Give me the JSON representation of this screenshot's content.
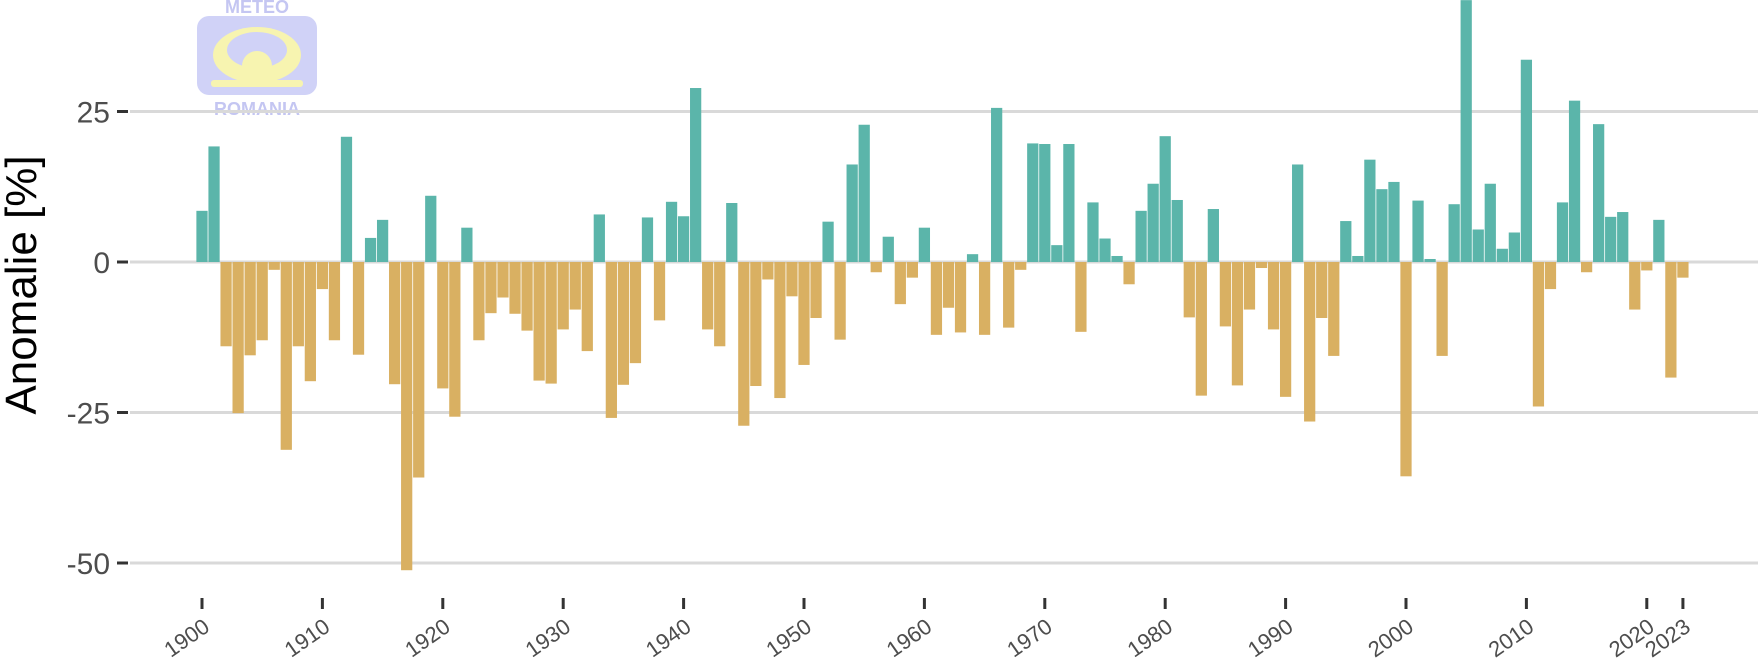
{
  "logo": {
    "top_text": "METEO",
    "bottom_text": "ROMANIA"
  },
  "colors": {
    "positive": "#5bb5aa",
    "negative": "#d9b062",
    "grid": "#d9d9d9",
    "logo": "#d0d2f7",
    "logo_symbol": "#f7f4b0"
  },
  "chart_data": {
    "type": "bar",
    "ylabel": "Anomalie [%]",
    "xlabel": "",
    "ylim": [
      -52,
      43
    ],
    "xlim": [
      1900,
      2023
    ],
    "yticks": [
      25,
      0,
      -25,
      -50
    ],
    "ytick_labels": [
      "25",
      "0",
      "-25",
      "-50"
    ],
    "xticks": [
      1900,
      1910,
      1920,
      1930,
      1940,
      1950,
      1960,
      1970,
      1980,
      1990,
      2000,
      2010,
      2020,
      2023
    ],
    "xtick_labels": [
      "1900",
      "1910",
      "1920",
      "1930",
      "1940",
      "1950",
      "1960",
      "1970",
      "1980",
      "1990",
      "2000",
      "2010",
      "2020",
      "2023"
    ],
    "grid": true,
    "legend": "none",
    "x": [
      1900,
      1901,
      1902,
      1903,
      1904,
      1905,
      1906,
      1907,
      1908,
      1909,
      1910,
      1911,
      1912,
      1913,
      1914,
      1915,
      1916,
      1917,
      1918,
      1919,
      1920,
      1921,
      1922,
      1923,
      1924,
      1925,
      1926,
      1927,
      1928,
      1929,
      1930,
      1931,
      1932,
      1933,
      1934,
      1935,
      1936,
      1937,
      1938,
      1939,
      1940,
      1941,
      1942,
      1943,
      1944,
      1945,
      1946,
      1947,
      1948,
      1949,
      1950,
      1951,
      1952,
      1953,
      1954,
      1955,
      1956,
      1957,
      1958,
      1959,
      1960,
      1961,
      1962,
      1963,
      1964,
      1965,
      1966,
      1967,
      1968,
      1969,
      1970,
      1971,
      1972,
      1973,
      1974,
      1975,
      1976,
      1977,
      1978,
      1979,
      1980,
      1981,
      1982,
      1983,
      1984,
      1985,
      1986,
      1987,
      1988,
      1989,
      1990,
      1991,
      1992,
      1993,
      1994,
      1995,
      1996,
      1997,
      1998,
      1999,
      2000,
      2001,
      2002,
      2003,
      2004,
      2005,
      2006,
      2007,
      2008,
      2009,
      2010,
      2011,
      2012,
      2013,
      2014,
      2015,
      2016,
      2017,
      2018,
      2019,
      2020,
      2021,
      2022,
      2023
    ],
    "values": [
      8.5,
      19.2,
      -14.0,
      -25.1,
      -15.5,
      -13.0,
      -1.3,
      -31.2,
      -14.0,
      -19.8,
      -4.5,
      -13.0,
      20.8,
      -15.4,
      4.0,
      7.0,
      -20.3,
      -51.2,
      -35.8,
      11.0,
      -21.0,
      -25.7,
      5.7,
      -13.0,
      -8.5,
      -5.9,
      -8.6,
      -11.4,
      -19.7,
      -20.2,
      -11.2,
      -7.9,
      -14.8,
      7.9,
      -25.9,
      -20.4,
      -16.8,
      7.4,
      -9.7,
      10.0,
      7.6,
      28.9,
      -11.2,
      -14.0,
      9.8,
      -27.2,
      -20.6,
      -2.9,
      -22.6,
      -5.7,
      -17.1,
      -9.3,
      6.7,
      -12.9,
      16.2,
      22.8,
      -1.7,
      4.2,
      -7.0,
      -2.6,
      5.7,
      -12.1,
      -7.6,
      -11.7,
      1.3,
      -12.1,
      25.6,
      -10.9,
      -1.3,
      19.7,
      19.6,
      2.8,
      19.6,
      -11.6,
      9.9,
      3.9,
      1.0,
      -3.7,
      8.5,
      13.0,
      20.9,
      10.3,
      -9.2,
      -22.2,
      8.8,
      -10.7,
      -20.5,
      -7.9,
      -1.0,
      -11.2,
      -22.4,
      16.2,
      -26.5,
      -9.3,
      -15.6,
      6.8,
      1.0,
      17.0,
      12.1,
      13.3,
      -35.6,
      10.2,
      0.5,
      -15.6,
      9.6,
      43.5,
      5.4,
      13.0,
      2.2,
      4.9,
      33.6,
      -24.0,
      -4.5,
      9.9,
      26.8,
      -1.7,
      22.9,
      7.5,
      8.3,
      -7.9,
      -1.4,
      7.0,
      -19.2,
      -2.6
    ]
  }
}
